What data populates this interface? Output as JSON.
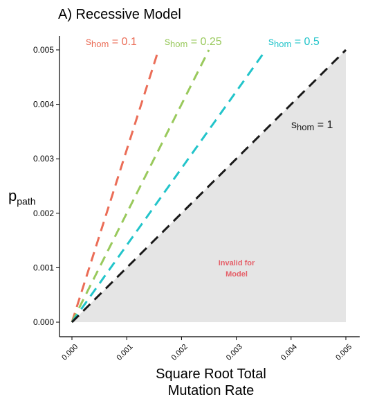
{
  "chart_data": {
    "type": "line",
    "title": "A) Recessive Model",
    "xlabel_line1": "Square Root Total",
    "xlabel_line2": "Mutation Rate",
    "ylabel_main": "p",
    "ylabel_sub": "path",
    "xlim": [
      0,
      0.005
    ],
    "ylim": [
      0,
      0.005
    ],
    "x_ticks": [
      "0.000",
      "0.001",
      "0.002",
      "0.003",
      "0.004",
      "0.005"
    ],
    "y_ticks": [
      "0.000",
      "0.001",
      "0.002",
      "0.003",
      "0.004",
      "0.005"
    ],
    "grid": false,
    "shaded_region": {
      "label_line1": "Invalid for",
      "label_line2": "Model",
      "color": "#e5e5e5",
      "label_color": "#e5616a"
    },
    "series": [
      {
        "label_main": "s",
        "label_sub": "hom",
        "label_value": "= 0.1",
        "color": "#eb6d57",
        "s": 0.1,
        "x": [
          0,
          0.00158
        ],
        "y": [
          0,
          0.005
        ]
      },
      {
        "label_main": "s",
        "label_sub": "hom",
        "label_value": "= 0.25",
        "color": "#99c95c",
        "s": 0.25,
        "x": [
          0,
          0.0025
        ],
        "y": [
          0,
          0.005
        ]
      },
      {
        "label_main": "s",
        "label_sub": "hom",
        "label_value": "= 0.5",
        "color": "#22c4ca",
        "s": 0.5,
        "x": [
          0,
          0.00354
        ],
        "y": [
          0,
          0.005
        ]
      },
      {
        "label_main": "s",
        "label_sub": "hom",
        "label_value": "= 1",
        "color": "#1a1a1a",
        "s": 1,
        "x": [
          0,
          0.005
        ],
        "y": [
          0,
          0.005
        ]
      }
    ]
  }
}
